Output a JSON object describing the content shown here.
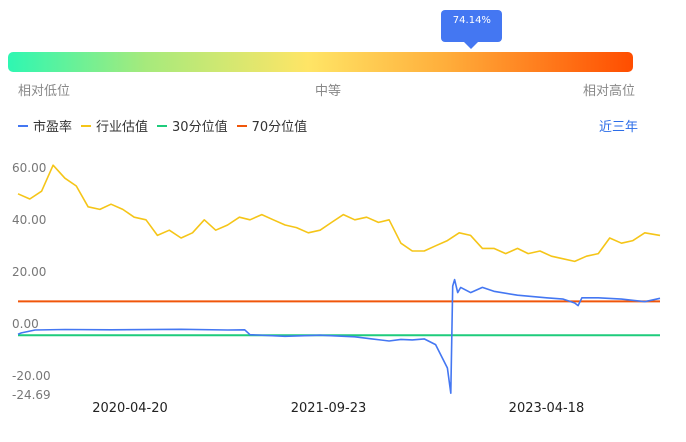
{
  "gauge": {
    "percentile": "74.14%",
    "percentile_value": 74.14,
    "labels": {
      "low": "相对低位",
      "mid": "中等",
      "high": "相对高位"
    }
  },
  "legend": [
    {
      "name": "市盈率",
      "color": "#4477f2"
    },
    {
      "name": "行业估值",
      "color": "#f5c518"
    },
    {
      "name": "30分位值",
      "color": "#1ecc7c"
    },
    {
      "name": "70分位值",
      "color": "#f0560a"
    }
  ],
  "period_button": "近三年",
  "chart_data": {
    "type": "line",
    "ylim": [
      -24.69,
      70
    ],
    "y_ticks": [
      "60.00",
      "40.00",
      "20.00",
      "0.00",
      "-20.00",
      "-24.69"
    ],
    "x_ticks": [
      "2020-04-20",
      "2021-09-23",
      "2023-04-18"
    ],
    "xlim": [
      "2019-07-01",
      "2024-02-10"
    ],
    "series": [
      {
        "name": "市盈率",
        "color": "#4477f2",
        "x": [
          "2019-07-01",
          "2019-07-10",
          "2019-08-15",
          "2019-11-01",
          "2020-03-01",
          "2020-09-01",
          "2021-01-01",
          "2021-02-15",
          "2021-03-01",
          "2021-06-01",
          "2021-09-01",
          "2021-12-01",
          "2022-01-15",
          "2022-03-01",
          "2022-04-01",
          "2022-05-01",
          "2022-06-01",
          "2022-07-01",
          "2022-08-01",
          "2022-08-10",
          "2022-08-15",
          "2022-08-20",
          "2022-08-28",
          "2022-09-05",
          "2022-10-01",
          "2022-11-01",
          "2022-12-01",
          "2023-02-01",
          "2023-04-18",
          "2023-06-01",
          "2023-07-01",
          "2023-07-10",
          "2023-07-20",
          "2023-09-01",
          "2023-11-01",
          "2024-01-01",
          "2024-02-10"
        ],
        "values": [
          -2.0,
          -1.5,
          -0.4,
          -0.2,
          -0.3,
          -0.1,
          -0.4,
          -0.3,
          -2.2,
          -2.8,
          -2.4,
          -3.0,
          -3.8,
          -4.6,
          -4.0,
          -4.2,
          -3.8,
          -6.0,
          -15.0,
          -24.69,
          16.5,
          19.0,
          14.0,
          16.0,
          14.0,
          16.0,
          14.5,
          13.0,
          12.0,
          11.5,
          10.0,
          9.0,
          12.0,
          12.0,
          11.5,
          10.5,
          11.8
        ]
      },
      {
        "name": "行业估值",
        "color": "#f5c518",
        "x": [
          "2019-07-01",
          "2019-08-01",
          "2019-09-01",
          "2019-10-01",
          "2019-11-01",
          "2019-12-01",
          "2020-01-01",
          "2020-02-01",
          "2020-03-01",
          "2020-04-01",
          "2020-05-01",
          "2020-06-01",
          "2020-07-01",
          "2020-08-01",
          "2020-09-01",
          "2020-10-01",
          "2020-11-01",
          "2020-12-01",
          "2021-01-01",
          "2021-02-01",
          "2021-03-01",
          "2021-04-01",
          "2021-05-01",
          "2021-06-01",
          "2021-07-01",
          "2021-08-01",
          "2021-09-01",
          "2021-10-01",
          "2021-11-01",
          "2021-12-01",
          "2022-01-01",
          "2022-02-01",
          "2022-03-01",
          "2022-04-01",
          "2022-05-01",
          "2022-06-01",
          "2022-07-01",
          "2022-08-01",
          "2022-09-01",
          "2022-10-01",
          "2022-11-01",
          "2022-12-01",
          "2023-01-01",
          "2023-02-01",
          "2023-03-01",
          "2023-04-01",
          "2023-05-01",
          "2023-06-01",
          "2023-07-01",
          "2023-08-01",
          "2023-09-01",
          "2023-10-01",
          "2023-11-01",
          "2023-12-01",
          "2024-01-01",
          "2024-02-10"
        ],
        "values": [
          52,
          50,
          53,
          63,
          58,
          55,
          47,
          46,
          48,
          46,
          43,
          42,
          36,
          38,
          35,
          37,
          42,
          38,
          40,
          43,
          42,
          44,
          42,
          40,
          39,
          37,
          38,
          41,
          44,
          42,
          43,
          41,
          42,
          33,
          30,
          30,
          32,
          34,
          37,
          36,
          31,
          31,
          29,
          31,
          29,
          30,
          28,
          27,
          26,
          28,
          29,
          35,
          33,
          34,
          37,
          36
        ]
      },
      {
        "name": "30分位值",
        "color": "#1ecc7c",
        "x": [
          "2019-07-01",
          "2024-02-10"
        ],
        "values": [
          -2.4,
          -2.4
        ]
      },
      {
        "name": "70分位值",
        "color": "#f0560a",
        "x": [
          "2019-07-01",
          "2024-02-10"
        ],
        "values": [
          10.6,
          10.6
        ]
      }
    ]
  }
}
